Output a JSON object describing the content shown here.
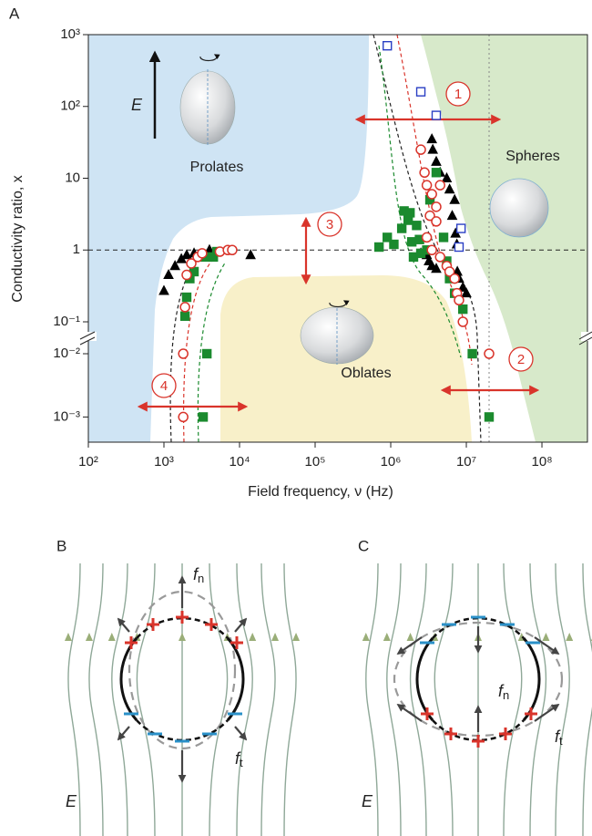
{
  "panels": [
    "A",
    "B",
    "C"
  ],
  "chart_data": {
    "type": "scatter",
    "x_label": "Field frequency, ν (Hz)",
    "y_label": "Conductivity ratio, x",
    "log_x": true,
    "log_y": true,
    "xlim": [
      100,
      400000000
    ],
    "xticks": [
      {
        "value": 100,
        "label": "10²"
      },
      {
        "value": 1000,
        "label": "10³"
      },
      {
        "value": 10000,
        "label": "10⁴"
      },
      {
        "value": 100000,
        "label": "10⁵"
      },
      {
        "value": 1000000,
        "label": "10⁶"
      },
      {
        "value": 10000000,
        "label": "10⁷"
      },
      {
        "value": 100000000,
        "label": "10⁸"
      }
    ],
    "ylim": [
      0.0004,
      1000
    ],
    "y_break": [
      0.01,
      0.1
    ],
    "yticks": [
      {
        "value": 1000,
        "label": "10³"
      },
      {
        "value": 100,
        "label": "10²"
      },
      10,
      1,
      {
        "value": 0.1,
        "label": "10⁻¹"
      },
      {
        "value": 0.01,
        "label": "10⁻²"
      },
      {
        "value": 0.001,
        "label": "10⁻³"
      }
    ],
    "reference_lines": {
      "y": 1,
      "x": 20000000
    },
    "regions": [
      "Prolates",
      "Spheres",
      "Oblates"
    ],
    "field_label": "E",
    "annotations": [
      "1",
      "2",
      "3",
      "4"
    ],
    "series": [
      {
        "marker": "triangle",
        "filled": true,
        "color": "#000000",
        "x": [
          1000,
          1150,
          1400,
          1700,
          2000,
          2500,
          4000,
          14000,
          3500000,
          3600000,
          4000000,
          4500000,
          5500000,
          6000000,
          7000000,
          6500000,
          7200000,
          7500000,
          7600000,
          8000000,
          9000000,
          10000000,
          3200000,
          3500000,
          4000000,
          2500000,
          3000000
        ],
        "values": [
          0.27,
          0.45,
          0.6,
          0.75,
          0.85,
          0.9,
          1.0,
          0.85,
          35,
          25,
          17,
          12,
          10,
          7,
          5,
          3,
          1.7,
          1.2,
          0.5,
          0.4,
          0.3,
          0.25,
          0.7,
          0.6,
          0.55,
          0.9,
          0.85
        ]
      },
      {
        "marker": "square",
        "filled": true,
        "color": "#1b8a2e",
        "x": [
          1900,
          2000,
          2200,
          2500,
          3500,
          4500,
          5000,
          3700,
          3300,
          700000,
          900000,
          1100000,
          1400000,
          1500000,
          1700000,
          1900000,
          2000000,
          1800000,
          2200000,
          2400000,
          2500000,
          4000000,
          3300000,
          3000000,
          5000000,
          5500000,
          6000000,
          7000000,
          9000000,
          12000000,
          20000000
        ],
        "values": [
          0.12,
          0.22,
          0.4,
          0.5,
          0.8,
          0.8,
          0.95,
          0.01,
          0.001,
          1.1,
          1.5,
          1.2,
          2,
          3.5,
          2.6,
          1.3,
          0.8,
          3.3,
          2.2,
          1.4,
          0.9,
          12,
          5,
          1,
          1.5,
          0.7,
          0.4,
          0.25,
          0.15,
          0.01,
          0.001
        ]
      },
      {
        "marker": "circle",
        "filled": false,
        "color": "#d9342b",
        "x": [
          1800,
          1900,
          2000,
          2300,
          2800,
          3200,
          5500,
          7000,
          8000,
          1800,
          2500000,
          2800000,
          3000000,
          3500000,
          4000000,
          3300000,
          4500000,
          4000000,
          3000000,
          3500000,
          4500000,
          5500000,
          6000000,
          7000000,
          7500000,
          8000000,
          9000000,
          20000000
        ],
        "values": [
          0.01,
          0.16,
          0.45,
          0.65,
          0.8,
          0.9,
          0.95,
          1.0,
          1.0,
          0.001,
          25,
          12,
          8,
          6,
          4,
          3,
          8,
          2.5,
          1.5,
          1.0,
          0.8,
          0.6,
          0.5,
          0.4,
          0.25,
          0.2,
          0.1,
          0.01
        ]
      },
      {
        "marker": "square",
        "filled": false,
        "color": "#2a3fc4",
        "x": [
          900000,
          2500000,
          4000000,
          8500000,
          8000000
        ],
        "values": [
          700,
          160,
          75,
          2,
          1.1
        ]
      }
    ]
  },
  "diagrams": [
    {
      "force_normal": {
        "symbol": "f",
        "subscript": "n"
      },
      "force_tangential": {
        "symbol": "f",
        "subscript": "t"
      },
      "field": "E"
    },
    {
      "force_normal": {
        "symbol": "f",
        "subscript": "n"
      },
      "force_tangential": {
        "symbol": "f",
        "subscript": "t"
      },
      "field": "E"
    }
  ]
}
